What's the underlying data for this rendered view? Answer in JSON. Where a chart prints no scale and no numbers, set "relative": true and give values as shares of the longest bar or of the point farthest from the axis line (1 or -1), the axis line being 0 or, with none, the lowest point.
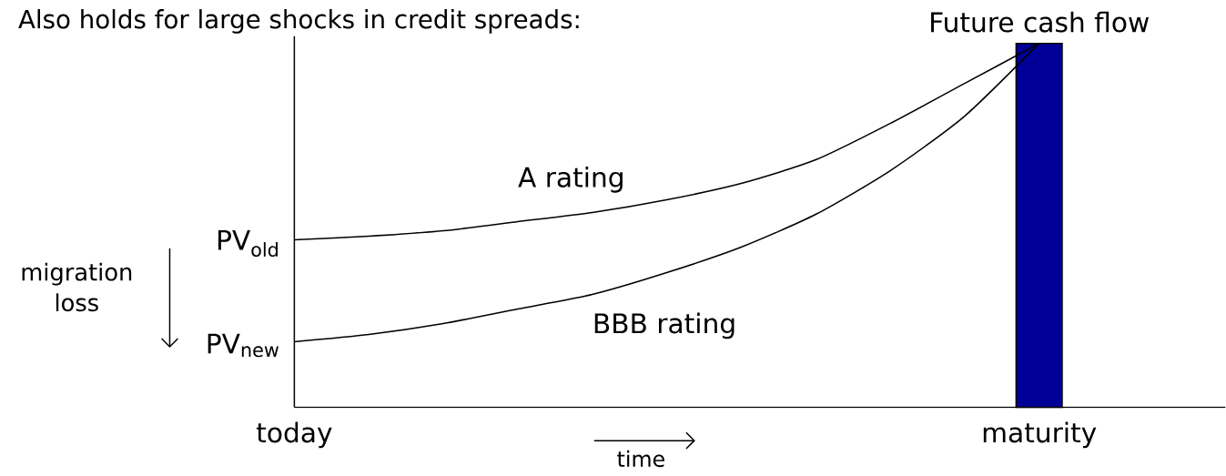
{
  "chart_data": {
    "type": "line",
    "title": "Also holds for large shocks in credit spreads:",
    "relative": true,
    "categories": [
      "today",
      null,
      null,
      null,
      null,
      null,
      null,
      null,
      null,
      null,
      "maturity",
      null,
      null
    ],
    "series": [
      {
        "type": "bar",
        "name": "Future cash flow",
        "color": "#000099",
        "values": [
          null,
          null,
          null,
          null,
          null,
          null,
          null,
          null,
          null,
          null,
          1,
          null,
          null
        ]
      },
      {
        "name": "A rating",
        "color": "#000000",
        "values": [
          0.46,
          0.47,
          0.485,
          0.51,
          0.535,
          0.57,
          0.615,
          0.68,
          0.78,
          0.89,
          1.0,
          null,
          null
        ]
      },
      {
        "name": "BBB rating",
        "color": "#000000",
        "values": [
          0.18,
          0.2,
          0.23,
          0.27,
          0.31,
          0.37,
          0.44,
          0.53,
          0.65,
          0.8,
          1.0,
          null,
          null
        ]
      }
    ],
    "annotations": [
      {
        "text": "PV$_{old}$",
        "x": "today",
        "y": 0.46
      },
      {
        "text": "PV$_{new}$",
        "x": "today",
        "y": 0.18
      },
      "migration loss",
      "time"
    ]
  }
}
